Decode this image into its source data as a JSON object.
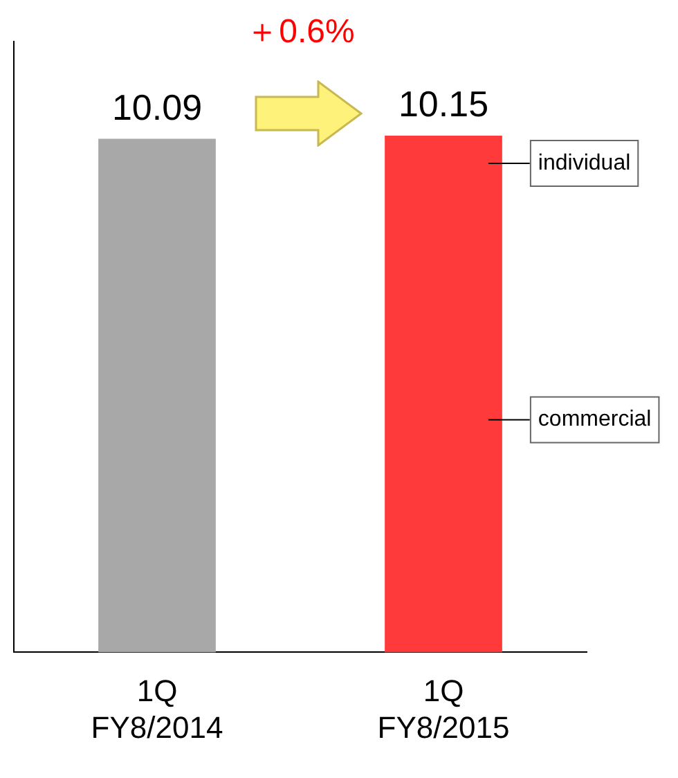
{
  "chart_data": {
    "type": "bar",
    "categories": [
      "1Q\nFY8/2014",
      "1Q\nFY8/2015"
    ],
    "values": [
      10.09,
      10.15
    ],
    "colors": [
      "#a8a8a8",
      "#ff3a3a"
    ],
    "data_labels": true,
    "ylim": [
      0,
      12
    ],
    "tick_labels": "x",
    "grid": false,
    "annotations": [
      "＋0.6%",
      "individual",
      "commercial"
    ]
  }
}
